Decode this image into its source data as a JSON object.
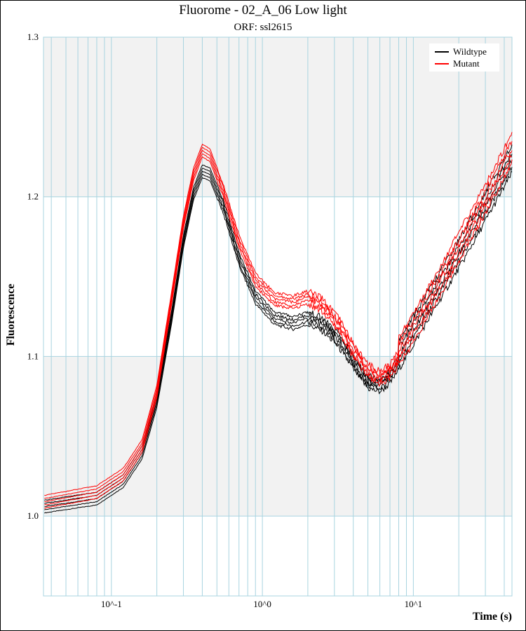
{
  "chart_data": {
    "type": "line",
    "title": "Fluorome - 02_A_06 Low light",
    "subtitle": "ORF: ssl2615",
    "xlabel": "Time (s)",
    "ylabel": "Fluorescence",
    "xscale": "log",
    "xlim": [
      0.0355,
      45
    ],
    "ylim": [
      0.95,
      1.3
    ],
    "x_ticks": [
      {
        "value": 0.1,
        "label": "10^-1"
      },
      {
        "value": 1,
        "label": "10^0"
      },
      {
        "value": 10,
        "label": "10^1"
      }
    ],
    "y_ticks": [
      {
        "value": 1.0,
        "label": "1.0"
      },
      {
        "value": 1.1,
        "label": "1.1"
      },
      {
        "value": 1.2,
        "label": "1.2"
      },
      {
        "value": 1.3,
        "label": "1.3"
      }
    ],
    "grid": true,
    "legend_position": "top-right",
    "legend": [
      {
        "name": "Wildtype",
        "color": "#000000"
      },
      {
        "name": "Mutant",
        "color": "#ff0000"
      }
    ],
    "series": [
      {
        "name": "Wildtype",
        "color": "#000000",
        "x": [
          0.036,
          0.08,
          0.12,
          0.16,
          0.2,
          0.25,
          0.3,
          0.35,
          0.4,
          0.45,
          0.55,
          0.7,
          0.9,
          1.2,
          1.6,
          2.0,
          2.5,
          3.2,
          4.0,
          5.0,
          6.0,
          7.0,
          9.0,
          12.0,
          16.0,
          22.0,
          30.0,
          45.0
        ],
        "y": [
          1.002,
          1.007,
          1.018,
          1.036,
          1.068,
          1.12,
          1.168,
          1.198,
          1.212,
          1.21,
          1.19,
          1.157,
          1.133,
          1.12,
          1.117,
          1.12,
          1.116,
          1.106,
          1.092,
          1.08,
          1.078,
          1.083,
          1.1,
          1.12,
          1.14,
          1.162,
          1.185,
          1.215
        ],
        "offsets": [
          0,
          0.002,
          0.004,
          0.006,
          0.008
        ]
      },
      {
        "name": "Mutant",
        "color": "#ff0000",
        "x": [
          0.036,
          0.08,
          0.12,
          0.16,
          0.2,
          0.25,
          0.3,
          0.35,
          0.4,
          0.45,
          0.55,
          0.7,
          0.9,
          1.2,
          1.6,
          2.0,
          2.5,
          3.2,
          4.0,
          5.0,
          6.0,
          7.0,
          9.0,
          12.0,
          16.0,
          22.0,
          30.0,
          45.0
        ],
        "y": [
          1.005,
          1.011,
          1.022,
          1.04,
          1.074,
          1.132,
          1.18,
          1.21,
          1.225,
          1.222,
          1.2,
          1.168,
          1.144,
          1.132,
          1.13,
          1.133,
          1.128,
          1.116,
          1.1,
          1.087,
          1.083,
          1.087,
          1.102,
          1.122,
          1.143,
          1.167,
          1.19,
          1.222
        ],
        "offsets": [
          0,
          0.002,
          0.004,
          0.006,
          0.008
        ]
      }
    ]
  }
}
